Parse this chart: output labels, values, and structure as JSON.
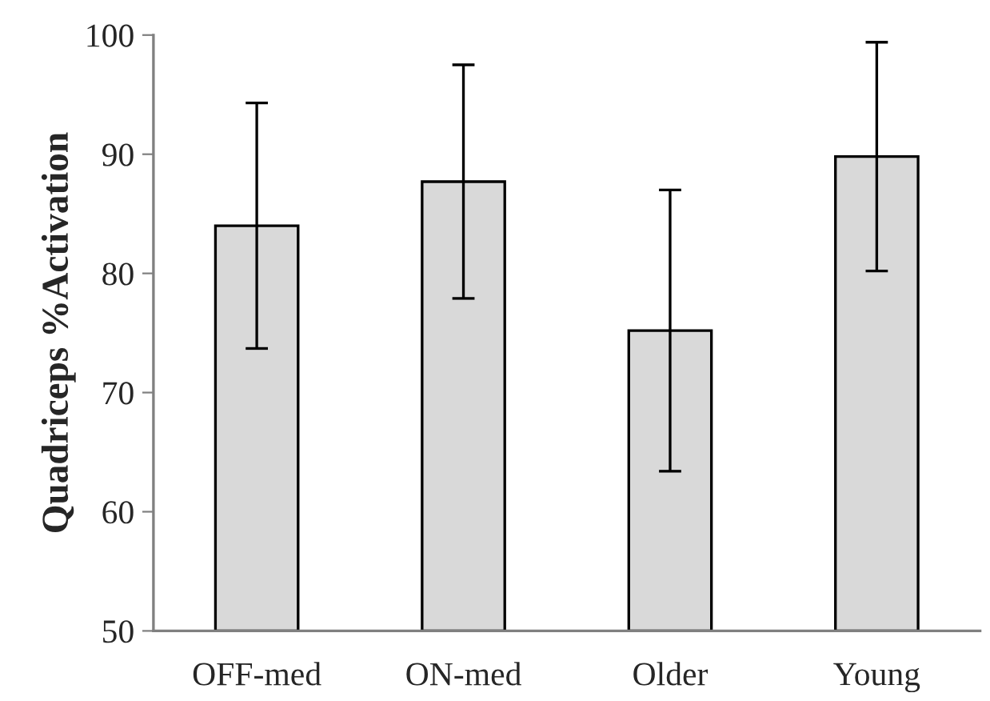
{
  "chart_data": {
    "type": "bar",
    "ylabel": "Quadriceps %Activation",
    "categories": [
      "OFF-med",
      "ON-med",
      "Older",
      "Young"
    ],
    "values": [
      84.0,
      87.7,
      75.2,
      89.8
    ],
    "errors": [
      10.3,
      9.8,
      11.8,
      9.6
    ],
    "color": "#d9d9d9",
    "ylim": [
      50,
      100
    ],
    "yticks": [
      50,
      60,
      70,
      80,
      90,
      100
    ],
    "grid": false
  }
}
